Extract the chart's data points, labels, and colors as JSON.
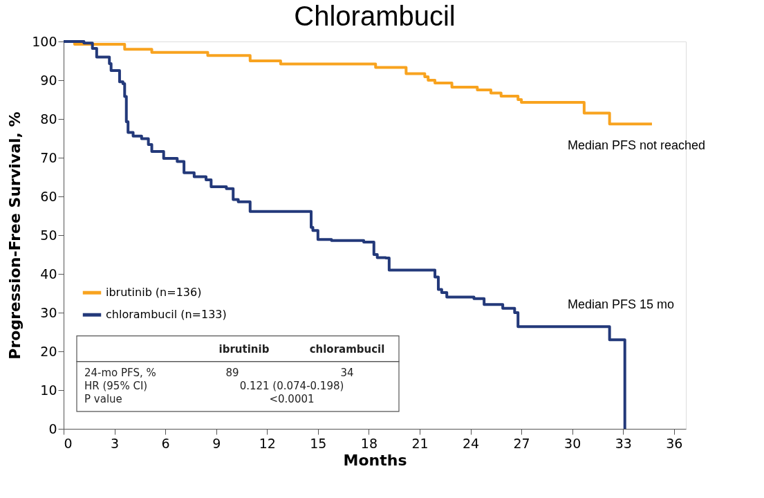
{
  "chart_data": {
    "type": "step",
    "title": "Chlorambucil",
    "xlabel": "Months",
    "ylabel": "Progression-Free Survival, %",
    "xlim": [
      0,
      36.7
    ],
    "xticks": [
      0,
      3,
      6,
      9,
      12,
      15,
      18,
      21,
      24,
      27,
      30,
      33,
      36
    ],
    "ylim": [
      0,
      100
    ],
    "yticks": [
      0,
      10,
      20,
      30,
      40,
      50,
      60,
      70,
      80,
      90,
      100
    ],
    "grid": false,
    "legend": "left",
    "line_style": "solid",
    "marker": "none",
    "series": [
      {
        "name": "ibrutinib  (n=136)",
        "color": "#f8a31f",
        "x": [
          0,
          0.65,
          3.6,
          5.2,
          8.5,
          11.0,
          12.8,
          18.4,
          20.2,
          21.3,
          21.5,
          21.9,
          22.9,
          24.4,
          25.2,
          25.8,
          26.8,
          27.0,
          30.7,
          32.2,
          34.7
        ],
        "values": [
          100,
          99.3,
          98,
          97.2,
          96.4,
          95,
          94.2,
          93.3,
          91.7,
          90.9,
          90,
          89.3,
          88.2,
          87.5,
          86.7,
          85.9,
          85,
          84.3,
          81.5,
          78.7,
          78.7
        ]
      },
      {
        "name": "chlorambucil  (n=133)",
        "color": "#23397a",
        "x": [
          0,
          1.2,
          1.7,
          1.95,
          2.7,
          2.8,
          3.3,
          3.5,
          3.6,
          3.7,
          3.8,
          4.1,
          4.6,
          5.0,
          5.2,
          5.9,
          6.7,
          7.1,
          7.7,
          8.4,
          8.7,
          9.6,
          10.0,
          10.3,
          11.0,
          14.6,
          14.7,
          15.0,
          15.8,
          17.7,
          18.3,
          18.5,
          19.0,
          19.2,
          21.9,
          22.1,
          22.3,
          22.6,
          24.2,
          24.8,
          25.9,
          26.6,
          26.8,
          32.2,
          33.1
        ],
        "values": [
          100,
          99.6,
          98.2,
          96,
          94.3,
          92.5,
          89.6,
          89.1,
          85.8,
          79.3,
          76.5,
          75.6,
          74.9,
          73.4,
          71.6,
          69.8,
          69,
          66.1,
          65.1,
          64.3,
          62.5,
          62,
          59.2,
          58.6,
          56.1,
          52,
          51.2,
          48.9,
          48.6,
          48.2,
          45,
          44.2,
          44.1,
          41,
          39.2,
          36,
          35.2,
          34,
          33.6,
          32.1,
          31.1,
          30,
          26.4,
          23,
          0
        ]
      }
    ],
    "annotations": [
      "Median PFS not reached",
      "Median PFS 15 mo",
      "ibrutinib",
      "chlorambucil",
      "24-mo PFS, %",
      "89",
      "34",
      "HR (95% CI)",
      "0.121 (0.074-0.198)",
      "P value",
      "<0.0001"
    ]
  }
}
